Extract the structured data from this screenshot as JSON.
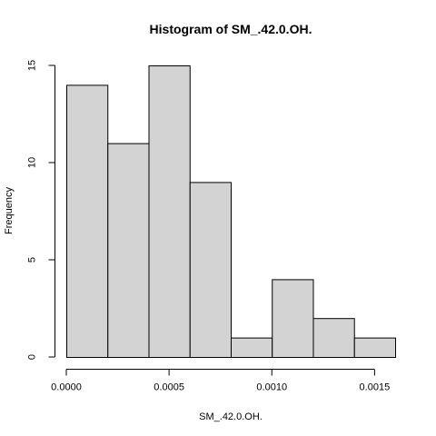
{
  "chart_data": {
    "type": "bar",
    "title": "Histogram of SM_.42.0.OH.",
    "xlabel": "SM_.42.0.OH.",
    "ylabel": "Frequency",
    "bins": [
      {
        "start": 0.0,
        "end": 0.0002,
        "count": 14
      },
      {
        "start": 0.0002,
        "end": 0.0004,
        "count": 11
      },
      {
        "start": 0.0004,
        "end": 0.0006,
        "count": 15
      },
      {
        "start": 0.0006,
        "end": 0.0008,
        "count": 9
      },
      {
        "start": 0.0008,
        "end": 0.001,
        "count": 1
      },
      {
        "start": 0.001,
        "end": 0.0012,
        "count": 4
      },
      {
        "start": 0.0012,
        "end": 0.0014,
        "count": 2
      },
      {
        "start": 0.0014,
        "end": 0.0016,
        "count": 1
      }
    ],
    "xlim": [
      0,
      0.0016
    ],
    "ylim": [
      0,
      15
    ],
    "x_ticks": [
      0.0,
      0.0005,
      0.001,
      0.0015
    ],
    "x_tick_labels": [
      "0.0000",
      "0.0005",
      "0.0010",
      "0.0015"
    ],
    "y_ticks": [
      0,
      5,
      10,
      15
    ],
    "y_tick_labels": [
      "0",
      "5",
      "10",
      "15"
    ],
    "bar_fill": "#d3d3d3",
    "bar_stroke": "#000000",
    "grid": false
  }
}
